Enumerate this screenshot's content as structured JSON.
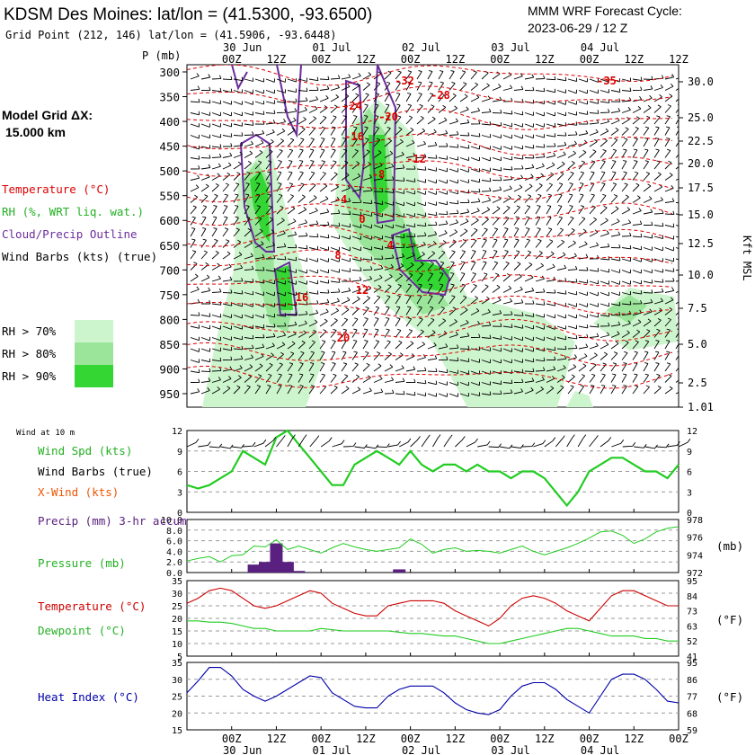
{
  "header": {
    "station_title": "KDSM Des Moines:  lat/lon = (41.5300, -93.6500)",
    "grid_point": "Grid Point (212, 146) lat/lon = (41.5906, -93.6448)",
    "model_title": "MMM WRF Forecast Cycle:",
    "cycle": "2023-06-29 / 12  Z"
  },
  "left_legend": {
    "grid_dx_label": "Model Grid ΔX:",
    "grid_dx_value": "15.000 km",
    "temperature": "Temperature (°C)",
    "rh": "RH (%, WRT liq. wat.)",
    "cloud": "Cloud/Precip Outline",
    "wind_barbs": "Wind Barbs (kts) (true)",
    "rh70": "RH > 70%",
    "rh80": "RH > 80%",
    "rh90": "RH > 90%"
  },
  "colors": {
    "temperature": "#dd0000",
    "rh70": "#cdf5cd",
    "rh80": "#9be59b",
    "rh90": "#33d633",
    "cloud": "#6a2c9c",
    "wind_spd": "#22cc22",
    "pressure": "#22cc22",
    "temp_line": "#cc0000",
    "dewpoint": "#22cc22",
    "heat_index": "#0000aa",
    "precip": "#5a2080",
    "xwind": "#ee5500"
  },
  "time_axis": {
    "top_dates": [
      "30 Jun",
      "01 Jul",
      "02 Jul",
      "03 Jul",
      "04 Jul"
    ],
    "hour_labels": [
      "00Z",
      "12Z",
      "00Z",
      "12Z",
      "00Z",
      "12Z",
      "00Z",
      "12Z",
      "00Z",
      "12Z"
    ],
    "bottom_dates": [
      "30 Jun",
      "01 Jul",
      "02 Jul",
      "03 Jul",
      "04 Jul"
    ]
  },
  "chart_data": [
    {
      "type": "line",
      "name": "cross-section",
      "title": "Time-height cross section",
      "ylabel": "P (mb)",
      "y_right_label": "Kft MSL",
      "pressure_levels": [
        300,
        350,
        400,
        450,
        500,
        550,
        600,
        650,
        700,
        750,
        800,
        850,
        900,
        950
      ],
      "height_kft": [
        "30.0",
        "25.0",
        "22.5",
        "20.0",
        "17.5",
        "15.0",
        "12.5",
        "10.0",
        "7.5",
        "5.0",
        "2.5",
        "1.01"
      ],
      "temperature_labels": [
        "-32",
        "-28",
        "-35",
        "-24",
        "-20",
        "-16",
        "-12",
        "-8",
        "-4",
        "0",
        "4",
        "8",
        "12",
        "16",
        "20"
      ],
      "hours": [
        0,
        12,
        24,
        36,
        48,
        60,
        72,
        84,
        96,
        108,
        120
      ]
    },
    {
      "type": "line",
      "name": "wind",
      "panel_title": "Wind at 10 m",
      "legend": [
        "Wind Spd (kts)",
        "Wind Barbs (true)",
        "X-Wind (kts)"
      ],
      "ylim": [
        0,
        12
      ],
      "ticks_left": [
        "12",
        "9",
        "6",
        "3",
        "0"
      ],
      "ticks_right": [
        "12",
        "9",
        "6",
        "3",
        "0"
      ],
      "hours": [
        -12,
        -9,
        -6,
        -3,
        0,
        3,
        6,
        9,
        12,
        15,
        18,
        21,
        24,
        27,
        30,
        33,
        36,
        39,
        42,
        45,
        48,
        51,
        54,
        57,
        60,
        63,
        66,
        69,
        72,
        75,
        78,
        81,
        84,
        87,
        90,
        93,
        96,
        99,
        102,
        105,
        108,
        111,
        114,
        117,
        120
      ],
      "speed": [
        4,
        3.5,
        4,
        5,
        6,
        9,
        8,
        7,
        11,
        12,
        10,
        8,
        6,
        4,
        4,
        7,
        8,
        9,
        8,
        7,
        9,
        7,
        6,
        7,
        7,
        6,
        7,
        6,
        6,
        5,
        6,
        6,
        5,
        3,
        1,
        3,
        6,
        7,
        8,
        8,
        7,
        6,
        6,
        5,
        7
      ]
    },
    {
      "type": "bar",
      "name": "precip-pressure",
      "legend": [
        "Precip (mm) 3-hr accum",
        "Pressure (mb)"
      ],
      "precip_ylim": [
        0,
        10
      ],
      "precip_ticks": [
        "10.0",
        "8.0",
        "6.0",
        "4.0",
        "2.0",
        "0.0"
      ],
      "pressure_ylim": [
        972,
        978
      ],
      "pressure_ticks": [
        "978",
        "976",
        "974",
        "972"
      ],
      "right_unit": "(mb)",
      "precip_hours": [
        6,
        9,
        12,
        15,
        18,
        45
      ],
      "precip_mm": [
        1.5,
        2.0,
        5.5,
        2.0,
        0.3,
        0.6
      ],
      "pressure_hours": [
        -12,
        -9,
        -6,
        -3,
        0,
        3,
        6,
        9,
        12,
        15,
        18,
        21,
        24,
        27,
        30,
        33,
        36,
        39,
        42,
        45,
        48,
        51,
        54,
        57,
        60,
        63,
        66,
        69,
        72,
        75,
        78,
        81,
        84,
        87,
        90,
        93,
        96,
        99,
        102,
        105,
        108,
        111,
        114,
        117,
        120
      ],
      "pressure": [
        973.3,
        973.6,
        973.8,
        973.2,
        973.9,
        974.0,
        975.0,
        974.9,
        975.7,
        974.6,
        975.0,
        974.6,
        974.2,
        974.8,
        975.3,
        974.9,
        974.6,
        974.4,
        974.6,
        974.8,
        975.8,
        975.2,
        974.2,
        974.6,
        974.8,
        974.4,
        974.5,
        974.4,
        974.2,
        974.6,
        975.0,
        974.4,
        974.0,
        974.4,
        974.8,
        975.3,
        975.9,
        976.6,
        976.7,
        976.2,
        975.3,
        975.8,
        976.6,
        977.0,
        977.2
      ]
    },
    {
      "type": "line",
      "name": "temp-dewpoint",
      "legend": [
        "Temperature (°C)",
        "Dewpoint (°C)"
      ],
      "ylim": [
        5,
        35
      ],
      "ticks_left": [
        "35",
        "30",
        "25",
        "20",
        "15",
        "10",
        "5"
      ],
      "ticks_right": [
        "95",
        "84",
        "73",
        "63",
        "52",
        "41"
      ],
      "right_unit": "(°F)",
      "hours": [
        -12,
        -9,
        -6,
        -3,
        0,
        3,
        6,
        9,
        12,
        15,
        18,
        21,
        24,
        27,
        30,
        33,
        36,
        39,
        42,
        45,
        48,
        51,
        54,
        57,
        60,
        63,
        66,
        69,
        72,
        75,
        78,
        81,
        84,
        87,
        90,
        93,
        96,
        99,
        102,
        105,
        108,
        111,
        114,
        117,
        120
      ],
      "temperature": [
        26,
        28,
        31,
        32,
        31,
        28,
        25,
        24,
        25,
        27,
        29,
        31,
        30,
        26,
        24,
        22,
        21,
        21,
        25,
        26,
        27,
        27,
        27,
        26,
        23,
        21,
        19,
        17,
        20,
        25,
        28,
        29,
        28,
        26,
        23,
        21,
        19,
        24,
        29,
        31,
        31,
        29,
        27,
        25,
        25
      ],
      "dewpoint": [
        19,
        19,
        18.5,
        18.5,
        18,
        17,
        16,
        16,
        15,
        15,
        15,
        15,
        16,
        15.5,
        15,
        15,
        15,
        15,
        15,
        14.5,
        14,
        14,
        13.5,
        13,
        13,
        12,
        11,
        10,
        10,
        11,
        12,
        13,
        14,
        15,
        16,
        16,
        15,
        14,
        13,
        13,
        13,
        12,
        12,
        11,
        11
      ]
    },
    {
      "type": "line",
      "name": "heat-index",
      "legend": [
        "Heat Index (°C)"
      ],
      "ylim": [
        15,
        35
      ],
      "ticks_left": [
        "35",
        "30",
        "25",
        "20",
        "15"
      ],
      "ticks_right": [
        "95",
        "86",
        "77",
        "68",
        "59"
      ],
      "right_unit": "(°F)",
      "hours": [
        -12,
        -9,
        -6,
        -3,
        0,
        3,
        6,
        9,
        12,
        15,
        18,
        21,
        24,
        27,
        30,
        33,
        36,
        39,
        42,
        45,
        48,
        51,
        54,
        57,
        60,
        63,
        66,
        69,
        72,
        75,
        78,
        81,
        84,
        87,
        90,
        93,
        96,
        99,
        102,
        105,
        108,
        111,
        114,
        117,
        120
      ],
      "heat_index": [
        26,
        29.5,
        33.5,
        33.5,
        31,
        27,
        25,
        23.5,
        25,
        27,
        29,
        31,
        30.5,
        26,
        24,
        22,
        21.5,
        21.5,
        25,
        27,
        28,
        28,
        28,
        26,
        23,
        21,
        20,
        19.5,
        21,
        25,
        28,
        29,
        29,
        27,
        24,
        22,
        20,
        25,
        30,
        31.5,
        31.5,
        30,
        27,
        23.5,
        23
      ]
    }
  ]
}
